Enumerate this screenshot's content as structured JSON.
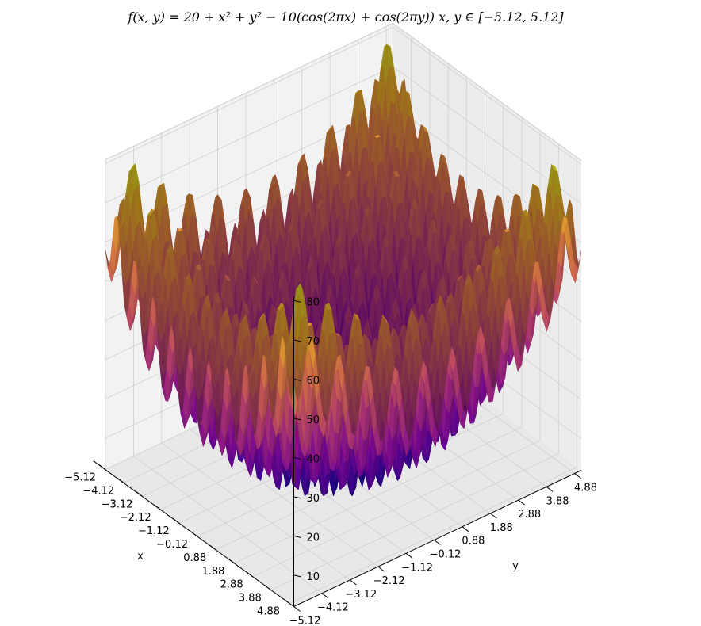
{
  "chart_data": {
    "type": "surface",
    "title": "f(x, y) = 20 + x² + y² − 10(cos(2πx) + cos(2πy))    x, y ∈ [−5.12, 5.12]",
    "function": "20 + x^2 + y^2 - 10*(cos(2*pi*x) + cos(2*pi*y))",
    "xlabel": "x",
    "ylabel": "y",
    "zlabel": "",
    "xlim": [
      -5.12,
      5.12
    ],
    "ylim": [
      -5.12,
      5.12
    ],
    "zlim": [
      2,
      81
    ],
    "x_ticks": [
      "−5.12",
      "−4.12",
      "−3.12",
      "−2.12",
      "−1.12",
      "−0.12",
      "0.88",
      "1.88",
      "2.88",
      "3.88",
      "4.88"
    ],
    "y_ticks": [
      "−5.12",
      "−4.12",
      "−3.12",
      "−2.12",
      "−1.12",
      "−0.12",
      "0.88",
      "1.88",
      "2.88",
      "3.88",
      "4.88"
    ],
    "z_ticks": [
      "10",
      "20",
      "30",
      "40",
      "50",
      "60",
      "70",
      "80"
    ],
    "colormap": "plasma",
    "grid": true,
    "pane_color": "#f2f2f2",
    "grid_color": "#cfcfcf"
  }
}
